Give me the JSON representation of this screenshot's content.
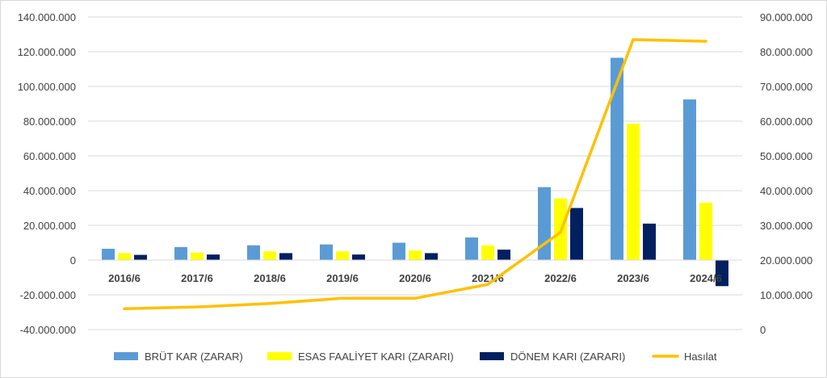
{
  "chart_data": {
    "type": "bar",
    "categories": [
      "2016/6",
      "2017/6",
      "2018/6",
      "2019/6",
      "2020/6",
      "2021/6",
      "2022/6",
      "2023/6",
      "2024/6"
    ],
    "series": [
      {
        "name": "BRÜT KAR (ZARAR)",
        "kind": "bar",
        "axis": "left",
        "color": "#5b9bd5",
        "values": [
          6500000,
          7500000,
          8500000,
          9000000,
          10000000,
          13000000,
          42000000,
          116500000,
          92500000
        ]
      },
      {
        "name": "ESAS FAALİYET KARI (ZARARI)",
        "kind": "bar",
        "axis": "left",
        "color": "#ffff00",
        "values": [
          4000000,
          4300000,
          5000000,
          5000000,
          5500000,
          8500000,
          35500000,
          78500000,
          33000000
        ]
      },
      {
        "name": "DÖNEM KARI (ZARARI)",
        "kind": "bar",
        "axis": "left",
        "color": "#002060",
        "values": [
          3000000,
          3200000,
          4000000,
          3200000,
          4000000,
          6000000,
          30000000,
          21000000,
          -15000000
        ]
      },
      {
        "name": "Hasılat",
        "kind": "line",
        "axis": "right",
        "color": "#ffc000",
        "values": [
          6000000,
          6500000,
          7500000,
          9000000,
          9000000,
          13000000,
          28000000,
          83500000,
          83000000
        ]
      }
    ],
    "y_left": {
      "ylim": [
        -40000000,
        140000000
      ],
      "ticks": [
        {
          "value": -40000000,
          "label": "-40.000.000"
        },
        {
          "value": -20000000,
          "label": "-20.000.000"
        },
        {
          "value": 0,
          "label": "0"
        },
        {
          "value": 20000000,
          "label": "20.000.000"
        },
        {
          "value": 40000000,
          "label": "40.000.000"
        },
        {
          "value": 60000000,
          "label": "60.000.000"
        },
        {
          "value": 80000000,
          "label": "80.000.000"
        },
        {
          "value": 100000000,
          "label": "100.000.000"
        },
        {
          "value": 120000000,
          "label": "120.000.000"
        },
        {
          "value": 140000000,
          "label": "140.000.000"
        }
      ]
    },
    "y_right": {
      "ylim": [
        0,
        90000000
      ],
      "ticks": [
        {
          "value": 0,
          "label": "0"
        },
        {
          "value": 10000000,
          "label": "10.000.000"
        },
        {
          "value": 20000000,
          "label": "20.000.000"
        },
        {
          "value": 30000000,
          "label": "30.000.000"
        },
        {
          "value": 40000000,
          "label": "40.000.000"
        },
        {
          "value": 50000000,
          "label": "50.000.000"
        },
        {
          "value": 60000000,
          "label": "60.000.000"
        },
        {
          "value": 70000000,
          "label": "70.000.000"
        },
        {
          "value": 80000000,
          "label": "80.000.000"
        },
        {
          "value": 90000000,
          "label": "90.000.000"
        }
      ]
    },
    "grid": true,
    "grid_color": "#d9d9d9",
    "legend_position": "bottom"
  }
}
